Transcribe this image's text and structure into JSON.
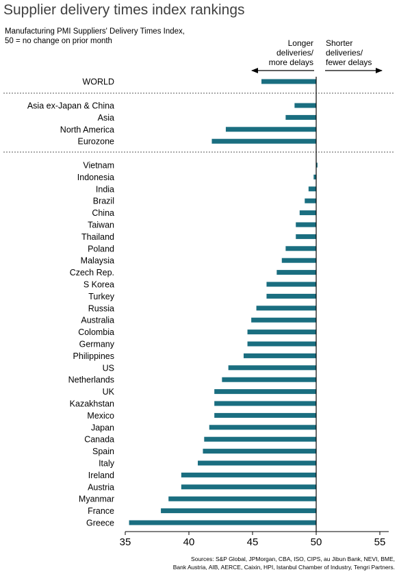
{
  "title": "Supplier delivery times index rankings",
  "subtitle": "Manufacturing PMI Suppliers' Delivery Times Index,\n50 = no change on prior month",
  "annotations": {
    "left": "Longer\ndeliveries/\nmore delays",
    "right": "Shorter\ndeliveries/\nfewer delays"
  },
  "sources": "Sources: S&P Global, JPMorgan, CBA, ISO, CIPS, au Jibun Bank, NEVI, BME,\nBank Austria, AIB, AERCE, Caixin, HPI, Istanbul Chamber of Industry, Tengri Partners.",
  "colors": {
    "bar": "#1a6e80",
    "axis": "#000000",
    "separator": "#555555"
  },
  "chart_data": {
    "type": "bar",
    "orientation": "horizontal",
    "title": "Supplier delivery times index rankings",
    "baseline": 50,
    "xlim": [
      35,
      56
    ],
    "xticks": [
      35,
      40,
      45,
      50,
      55
    ],
    "groups": [
      {
        "categories": [
          "WORLD"
        ],
        "values": [
          45.7
        ]
      },
      {
        "categories": [
          "Asia ex-Japan & China",
          "Asia",
          "North America",
          "Eurozone"
        ],
        "values": [
          48.3,
          47.6,
          42.9,
          41.8
        ]
      },
      {
        "categories": [
          "Vietnam",
          "Indonesia",
          "India",
          "Brazil",
          "China",
          "Taiwan",
          "Thailand",
          "Poland",
          "Malaysia",
          "Czech Rep.",
          "S Korea",
          "Turkey",
          "Russia",
          "Australia",
          "Colombia",
          "Germany",
          "Philippines",
          "US",
          "Netherlands",
          "UK",
          "Kazakhstan",
          "Mexico",
          "Japan",
          "Canada",
          "Spain",
          "Italy",
          "Ireland",
          "Austria",
          "Myanmar",
          "France",
          "Greece"
        ],
        "values": [
          50.1,
          49.8,
          49.4,
          49.1,
          48.7,
          48.4,
          48.4,
          47.6,
          47.3,
          46.9,
          46.1,
          46.1,
          45.3,
          44.9,
          44.6,
          44.6,
          44.3,
          43.1,
          42.6,
          42.0,
          42.0,
          42.0,
          41.6,
          41.2,
          41.1,
          40.7,
          39.4,
          39.4,
          38.4,
          37.8,
          35.3
        ]
      }
    ]
  }
}
